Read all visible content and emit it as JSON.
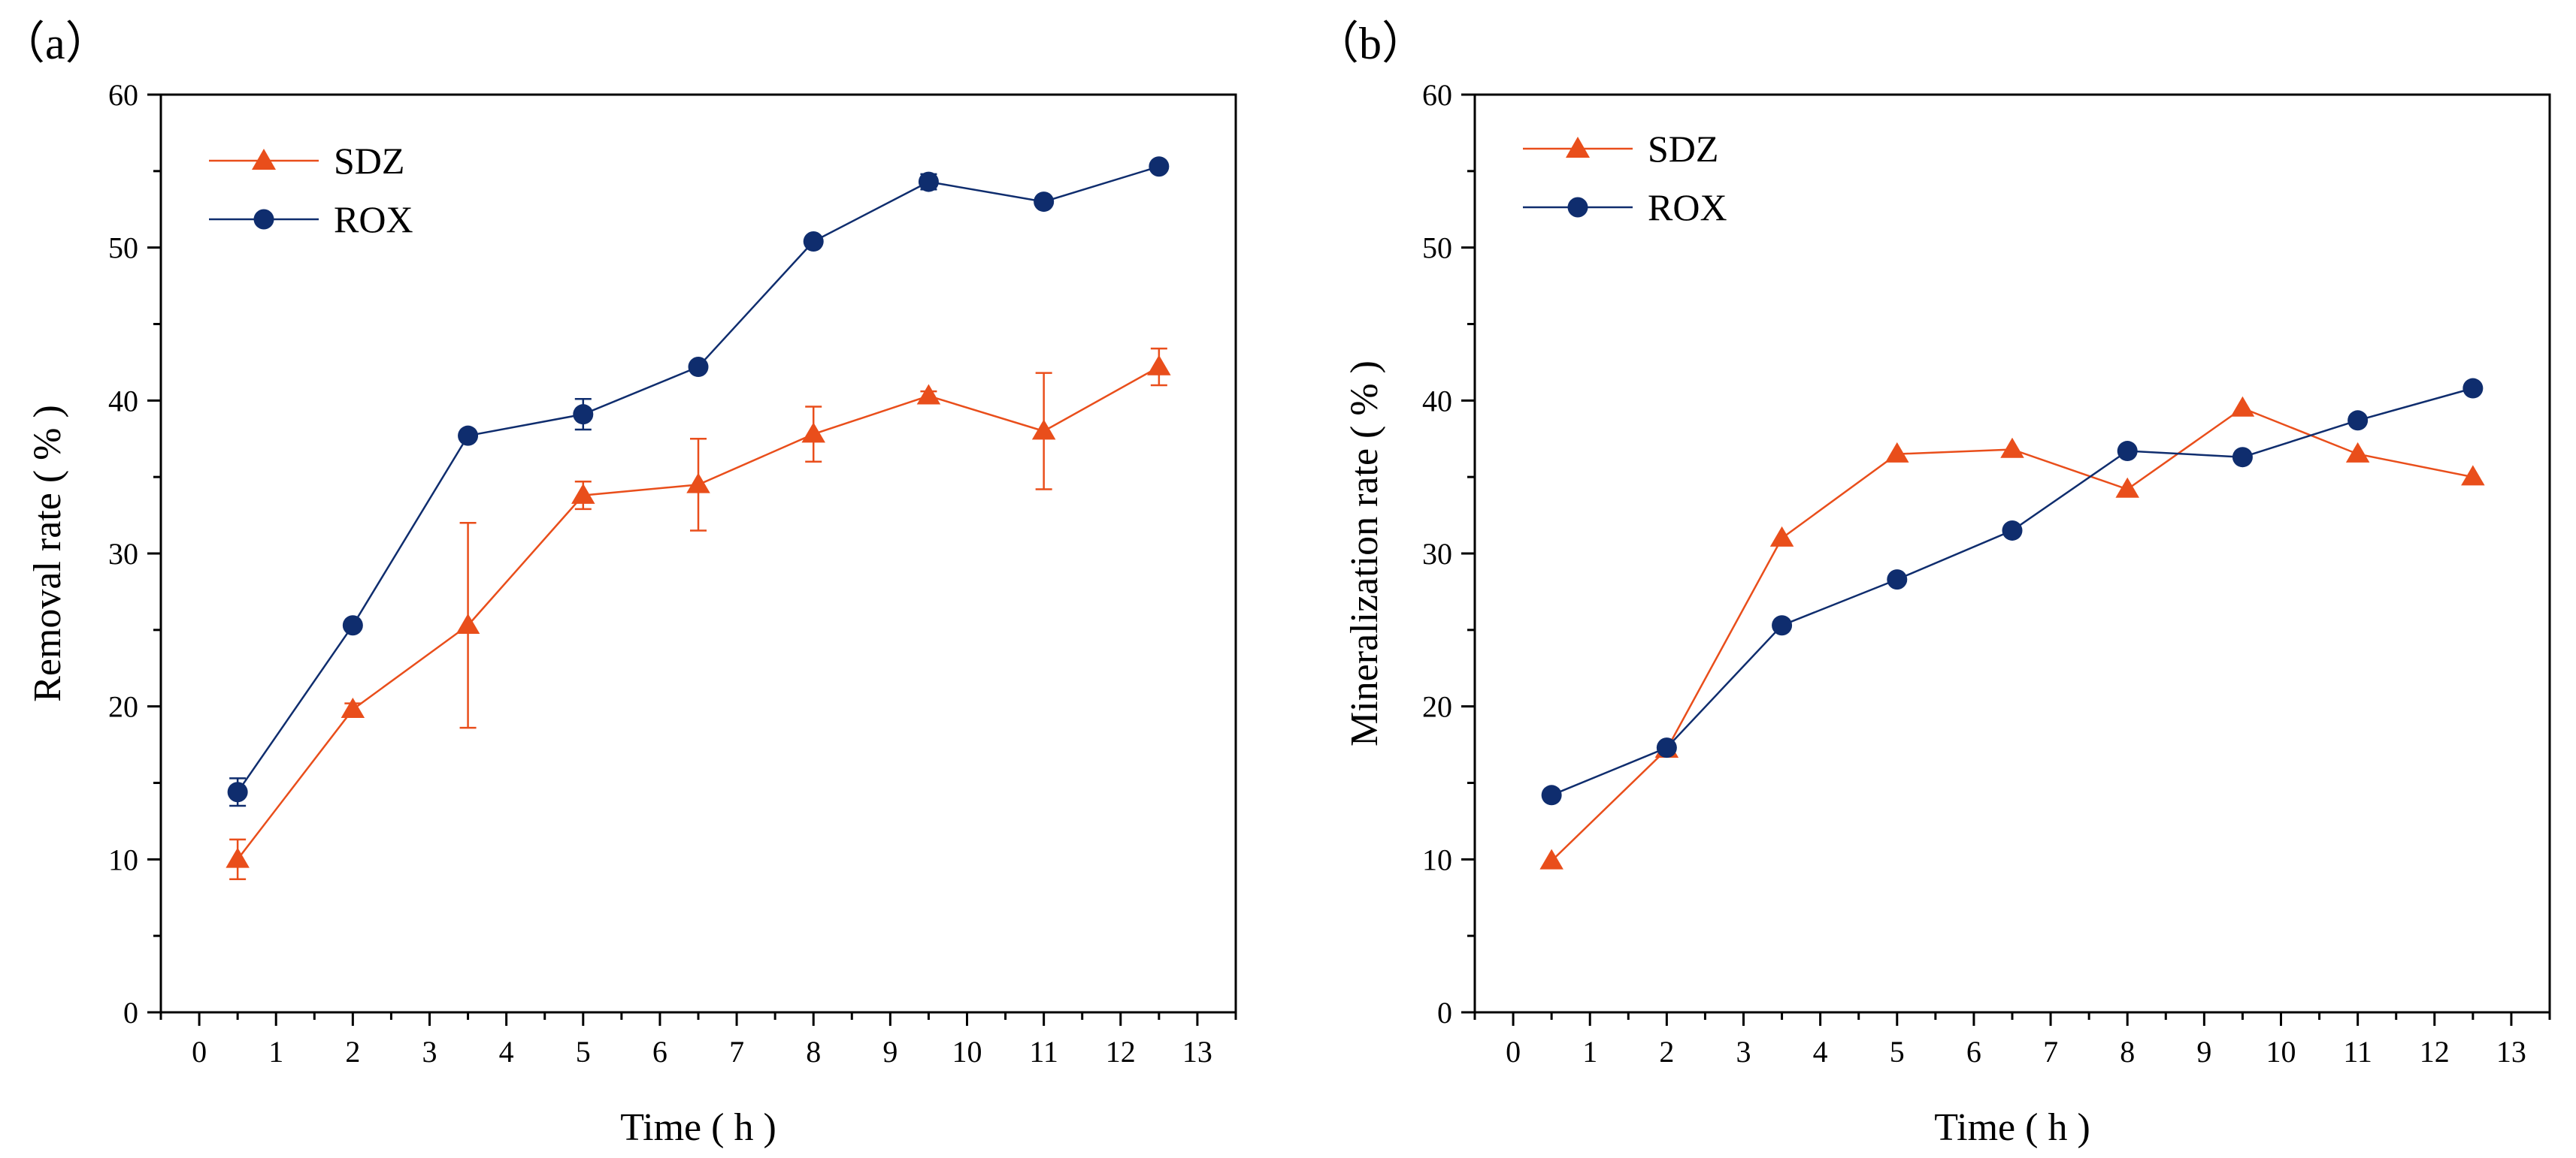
{
  "chart_data": [
    {
      "type": "line",
      "panel_label": "（a）",
      "xlabel": "Time ( h )",
      "ylabel": "Removal rate ( % )",
      "xlim": [
        -0.5,
        13.5
      ],
      "ylim": [
        0,
        60
      ],
      "xticks": [
        0,
        1,
        2,
        3,
        4,
        5,
        6,
        7,
        8,
        9,
        10,
        11,
        12,
        13
      ],
      "yticks": [
        0,
        10,
        20,
        30,
        40,
        50,
        60
      ],
      "legend_position": "top-left",
      "series": [
        {
          "name": "SDZ",
          "marker": "triangle",
          "color": "#e94e1b",
          "x": [
            0.5,
            2,
            3.5,
            5,
            6.5,
            8,
            9.5,
            11,
            12.5
          ],
          "y": [
            10.0,
            19.8,
            25.3,
            33.8,
            34.5,
            37.8,
            40.3,
            38.0,
            42.2
          ],
          "error": [
            1.3,
            0.4,
            6.7,
            0.9,
            3.0,
            1.8,
            0.3,
            3.8,
            1.2
          ]
        },
        {
          "name": "ROX",
          "marker": "circle",
          "color": "#0f2d6e",
          "x": [
            0.5,
            2,
            3.5,
            5,
            6.5,
            8,
            9.5,
            11,
            12.5
          ],
          "y": [
            14.4,
            25.3,
            37.7,
            39.1,
            42.2,
            50.4,
            54.3,
            53.0,
            55.3
          ],
          "error": [
            0.9,
            0.2,
            0.2,
            1.0,
            0.2,
            0.2,
            0.5,
            0.2,
            0.2
          ]
        }
      ]
    },
    {
      "type": "line",
      "panel_label": "（b）",
      "xlabel": "Time ( h )",
      "ylabel": "Mineralization rate ( % )",
      "xlim": [
        -0.5,
        13.5
      ],
      "ylim": [
        0,
        60
      ],
      "xticks": [
        0,
        1,
        2,
        3,
        4,
        5,
        6,
        7,
        8,
        9,
        10,
        11,
        12,
        13
      ],
      "yticks": [
        0,
        10,
        20,
        30,
        40,
        50,
        60
      ],
      "legend_position": "top-left",
      "series": [
        {
          "name": "SDZ",
          "marker": "triangle",
          "color": "#e94e1b",
          "x": [
            0.5,
            2,
            3.5,
            5,
            6.5,
            8,
            9.5,
            11,
            12.5
          ],
          "y": [
            9.9,
            17.2,
            31.0,
            36.5,
            36.8,
            34.2,
            39.5,
            36.5,
            35.0
          ],
          "error": []
        },
        {
          "name": "ROX",
          "marker": "circle",
          "color": "#0f2d6e",
          "x": [
            0.5,
            2,
            3.5,
            5,
            6.5,
            8,
            9.5,
            11,
            12.5
          ],
          "y": [
            14.2,
            17.3,
            25.3,
            28.3,
            31.5,
            36.7,
            36.3,
            38.7,
            40.8
          ],
          "error": []
        }
      ]
    }
  ]
}
